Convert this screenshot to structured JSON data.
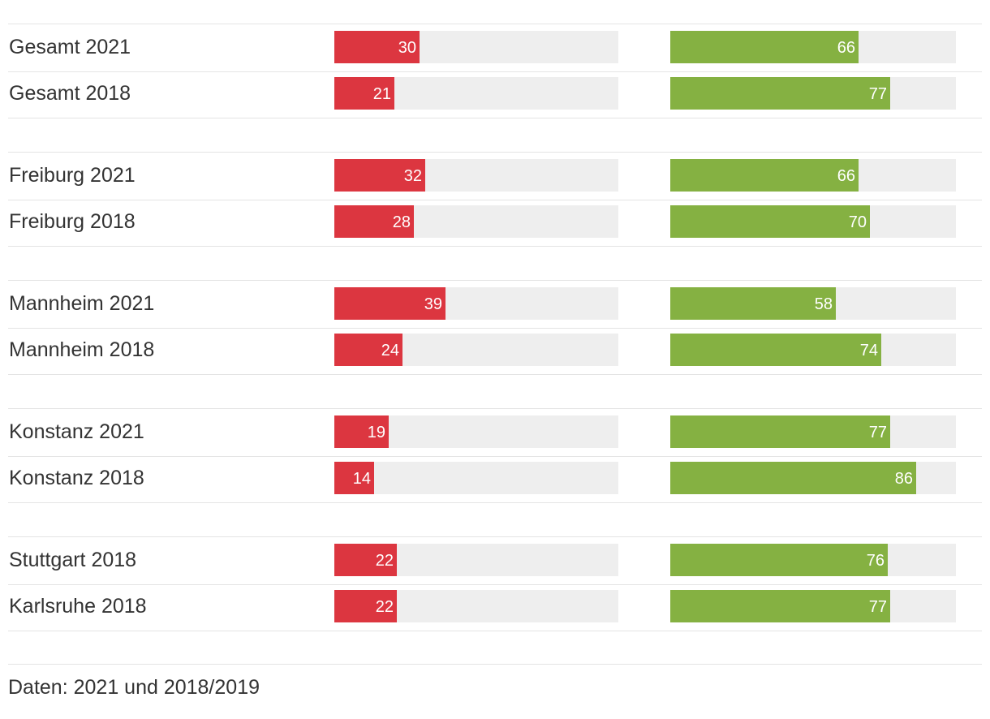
{
  "chart_data": {
    "type": "bar",
    "orientation": "horizontal",
    "grid": false,
    "legend": "none",
    "xlim": [
      0,
      100
    ],
    "categories": [
      "Gesamt 2021",
      "Gesamt 2018",
      "Freiburg 2021",
      "Freiburg 2018",
      "Mannheim 2021",
      "Mannheim 2018",
      "Konstanz 2021",
      "Konstanz 2018",
      "Stuttgart 2018",
      "Karlsruhe 2018"
    ],
    "groups": [
      [
        "Gesamt 2021",
        "Gesamt 2018"
      ],
      [
        "Freiburg 2021",
        "Freiburg 2018"
      ],
      [
        "Mannheim 2021",
        "Mannheim 2018"
      ],
      [
        "Konstanz 2021",
        "Konstanz 2018"
      ],
      [
        "Stuttgart 2018",
        "Karlsruhe 2018"
      ]
    ],
    "series": [
      {
        "name": "",
        "color": "#dc3640",
        "values": [
          30,
          21,
          32,
          28,
          39,
          24,
          19,
          14,
          22,
          22
        ]
      },
      {
        "name": "",
        "color": "#85b142",
        "values": [
          66,
          77,
          66,
          70,
          58,
          74,
          77,
          86,
          76,
          77
        ]
      }
    ]
  },
  "footer": {
    "note": "Daten: 2021 und 2018/2019"
  },
  "colors": {
    "track": "#eeeeee",
    "divider": "#e4e4e4",
    "text": "#333333",
    "value_text": "#ffffff"
  }
}
